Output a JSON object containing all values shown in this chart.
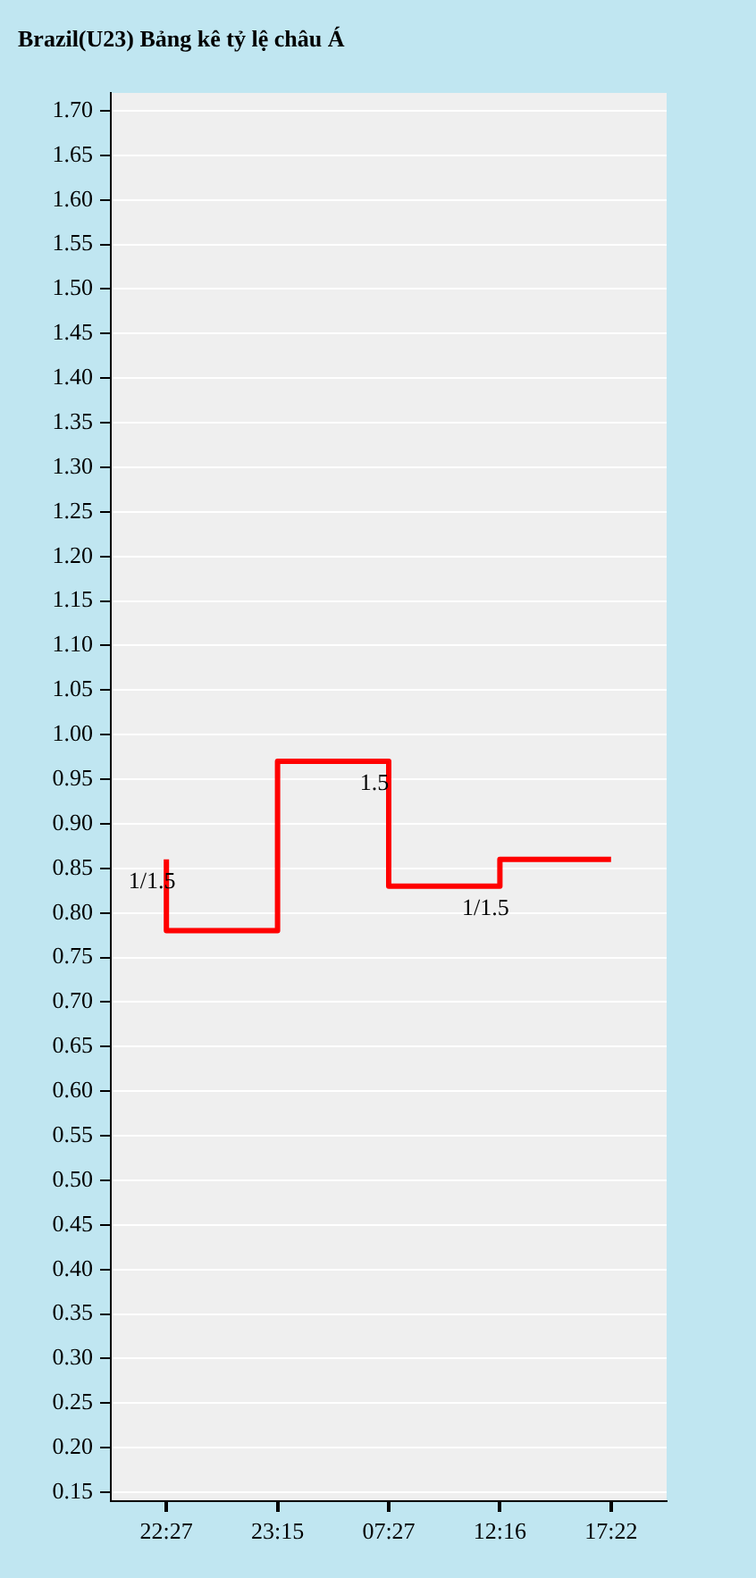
{
  "chart_data": {
    "type": "step",
    "title": "Brazil(U23) Bảng kê tỷ lệ châu Á",
    "categories": [
      "22:27",
      "23:15",
      "07:27",
      "12:16",
      "17:22"
    ],
    "series": [
      {
        "color": "#ff0000",
        "x": [
          "22:27",
          "22:27",
          "23:15",
          "07:27",
          "12:16",
          "17:22"
        ],
        "values": [
          0.86,
          0.78,
          0.97,
          0.83,
          0.86,
          0.86
        ]
      }
    ],
    "ylim": [
      0.14,
      1.72
    ],
    "yticks": [
      0.15,
      {
        "value": 0.2,
        "label": "0.20"
      },
      0.25,
      {
        "value": 0.3,
        "label": "0.30"
      },
      0.35,
      {
        "value": 0.4,
        "label": "0.40"
      },
      0.45,
      {
        "value": 0.5,
        "label": "0.50"
      },
      0.55,
      {
        "value": 0.6,
        "label": "0.60"
      },
      0.65,
      {
        "value": 0.7,
        "label": "0.70"
      },
      0.75,
      {
        "value": 0.8,
        "label": "0.80"
      },
      0.85,
      {
        "value": 0.9,
        "label": "0.90"
      },
      0.95,
      {
        "value": 1,
        "label": "1.00"
      },
      1.05,
      {
        "value": 1.1,
        "label": "1.10"
      },
      1.15,
      {
        "value": 1.2,
        "label": "1.20"
      },
      1.25,
      {
        "value": 1.3,
        "label": "1.30"
      },
      1.35,
      {
        "value": 1.4,
        "label": "1.40"
      },
      1.45,
      {
        "value": 1.5,
        "label": "1.50"
      },
      1.55,
      {
        "value": 1.6,
        "label": "1.60"
      },
      1.65,
      {
        "value": 1.7,
        "label": "1.70"
      }
    ],
    "annotations": [
      {
        "text": "1/1.5",
        "x": "22:27",
        "y": 0.86
      },
      {
        "text": "1.5",
        "x": "07:27",
        "y": 0.97
      },
      {
        "text": "1/1.5",
        "x": "12:16",
        "y": 0.83
      }
    ],
    "grid": "y",
    "legend": false,
    "marker": "none",
    "line_style": "solid"
  }
}
